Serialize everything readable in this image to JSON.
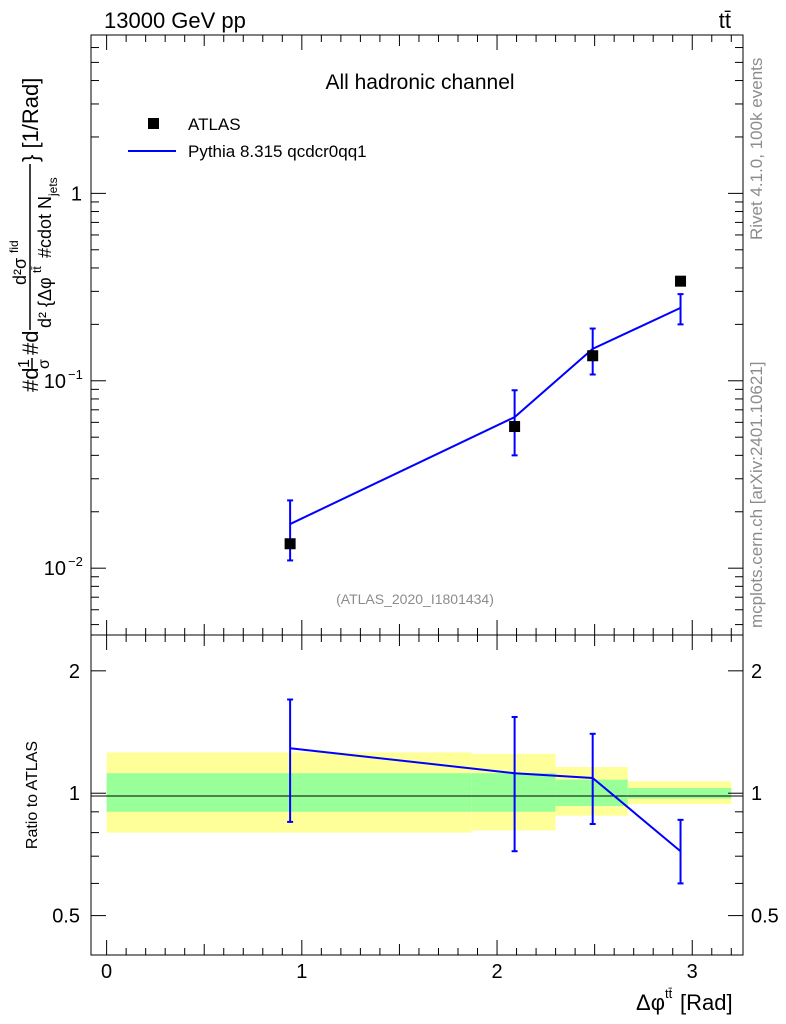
{
  "header": {
    "left": "13000 GeV pp",
    "right": "tt̄"
  },
  "side_labels": {
    "rivet": "Rivet 4.1.0,  100k events",
    "source": "mcplots.cern.ch [arXiv:2401.10621]"
  },
  "colors": {
    "mc_line": "#0000ff",
    "data_marker": "#000000",
    "band_outer": "#ffff99",
    "band_inner": "#99ff99"
  },
  "chart_data": [
    {
      "type": "line",
      "title": "All hadronic channel",
      "analysis_id": "(ATLAS_2020_I1801434)",
      "ylabel": "#d (1/σ) #d d²σ^{fid} / d² {Δφ^{tt̄} #cdot N_jets} [1/Rad]",
      "ylabel_main": "#d",
      "ylabel_tail": "} [1/Rad]",
      "yscale": "log",
      "xlim": [
        -0.08,
        3.26
      ],
      "ylim": [
        0.0044,
        7.0
      ],
      "y_ticks": [
        {
          "value": 0.01,
          "base": "10",
          "exp": "−2"
        },
        {
          "value": 0.1,
          "base": "10",
          "exp": "−1"
        },
        {
          "value": 1,
          "base": "1",
          "exp": ""
        }
      ],
      "legend": {
        "position": "top-left",
        "entries": [
          "ATLAS",
          "Pythia 8.315 qcdcr0qq1"
        ]
      },
      "series": [
        {
          "name": "ATLAS",
          "style": "markers",
          "x": [
            0.94,
            2.09,
            2.49,
            2.94
          ],
          "y": [
            0.0135,
            0.057,
            0.136,
            0.34
          ]
        },
        {
          "name": "Pythia 8.315 qcdcr0qq1",
          "style": "line",
          "x": [
            0.94,
            2.09,
            2.49,
            2.94
          ],
          "y": [
            0.0172,
            0.064,
            0.148,
            0.245
          ],
          "err_lo": [
            0.011,
            0.04,
            0.108,
            0.2
          ],
          "err_hi": [
            0.023,
            0.089,
            0.19,
            0.29
          ]
        }
      ]
    },
    {
      "type": "line",
      "ylabel": "Ratio to ATLAS",
      "xlabel": "Δφ",
      "xlabel_sup": "tt̄",
      "xlabel_unit": " [Rad]",
      "yscale": "log",
      "xlim": [
        -0.08,
        3.26
      ],
      "ylim": [
        0.4,
        2.45
      ],
      "x_ticks": [
        0,
        1,
        2,
        3
      ],
      "y_ticks": [
        0.5,
        1,
        2
      ],
      "bands": [
        {
          "x0": 0.0,
          "x1": 1.87,
          "outer": [
            0.8,
            1.26
          ],
          "inner": [
            0.9,
            1.12
          ]
        },
        {
          "x0": 1.87,
          "x1": 2.3,
          "outer": [
            0.81,
            1.25
          ],
          "inner": [
            0.9,
            1.12
          ]
        },
        {
          "x0": 2.3,
          "x1": 2.67,
          "outer": [
            0.88,
            1.16
          ],
          "inner": [
            0.93,
            1.08
          ]
        },
        {
          "x0": 2.67,
          "x1": 3.2,
          "outer": [
            0.94,
            1.07
          ],
          "inner": [
            0.97,
            1.03
          ]
        }
      ],
      "series": [
        {
          "name": "Pythia 8.315 qcdcr0qq1",
          "x": [
            0.94,
            2.09,
            2.49,
            2.94
          ],
          "y": [
            1.29,
            1.12,
            1.09,
            0.72
          ],
          "err_lo": [
            0.85,
            0.72,
            0.84,
            0.6
          ],
          "err_hi": [
            1.7,
            1.54,
            1.4,
            0.86
          ]
        }
      ]
    }
  ]
}
